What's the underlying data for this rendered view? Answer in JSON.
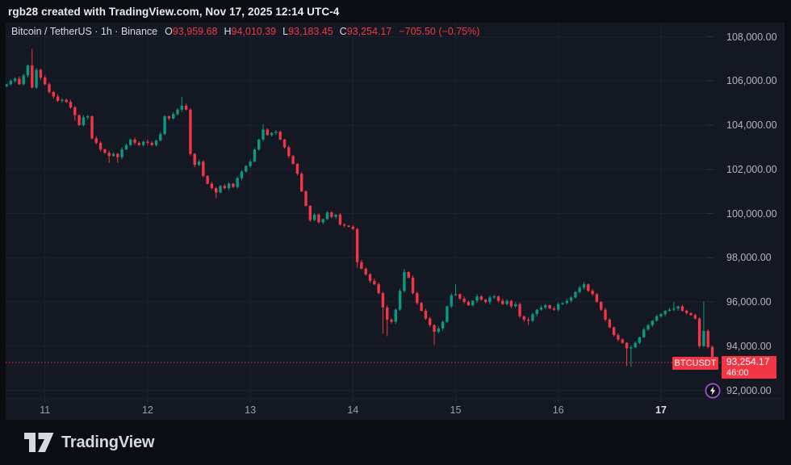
{
  "attribution": {
    "text": "rgb28 created with TradingView.com, Nov 17, 2025 12:14 UTC-4"
  },
  "legend": {
    "title": "Bitcoin / TetherUS · 1h · Binance",
    "o": {
      "label": "O",
      "value": "93,959.68"
    },
    "h": {
      "label": "H",
      "value": "94,010.39"
    },
    "l": {
      "label": "L",
      "value": "93,183.45"
    },
    "c": {
      "label": "C",
      "value": "93,254.17"
    },
    "change": "−705.50 (−0.75%)"
  },
  "price_scale": {
    "labels": [
      {
        "text": "108,000.00",
        "value": 108000
      },
      {
        "text": "106,000.00",
        "value": 106000
      },
      {
        "text": "104,000.00",
        "value": 104000
      },
      {
        "text": "102,000.00",
        "value": 102000
      },
      {
        "text": "100,000.00",
        "value": 100000
      },
      {
        "text": "98,000.00",
        "value": 98000
      },
      {
        "text": "96,000.00",
        "value": 96000
      },
      {
        "text": "94,000.00",
        "value": 94000
      },
      {
        "text": "92,000.00",
        "value": 92000
      }
    ]
  },
  "time_scale": {
    "ticks": [
      {
        "text": "11",
        "hour": 9,
        "strong": false
      },
      {
        "text": "12",
        "hour": 33,
        "strong": false
      },
      {
        "text": "13",
        "hour": 57,
        "strong": false
      },
      {
        "text": "14",
        "hour": 81,
        "strong": false
      },
      {
        "text": "15",
        "hour": 105,
        "strong": false
      },
      {
        "text": "16",
        "hour": 129,
        "strong": false
      },
      {
        "text": "17",
        "hour": 153,
        "strong": true
      }
    ]
  },
  "last_price": {
    "symbol_label": "BTCUSDT",
    "price": "93,254.17",
    "countdown": "46:00",
    "value": 93254.17
  },
  "branding": {
    "logo_text": "TradingView"
  },
  "colors": {
    "up": "#089981",
    "down": "#f23645",
    "grid": "#1c2130",
    "axis_stub": "#2a2e39",
    "frame": "#0b0d12",
    "chart_bg": "#141823",
    "axis_text": "#b2b5be",
    "price_line": "#f23645",
    "accent_purple": "#a14fd6"
  },
  "chart_data": {
    "type": "candlestick",
    "title": "Bitcoin / TetherUS",
    "symbol": "BTCUSDT",
    "exchange": "Binance",
    "interval": "1h",
    "last_bar": {
      "open": 93959.68,
      "high": 94010.39,
      "low": 93183.45,
      "close": 93254.17,
      "change": -705.5,
      "change_pct": -0.75
    },
    "current_price": 93254.17,
    "y_axis": {
      "top_value": 108000,
      "tick_step": 2000,
      "min_label": 92000,
      "max_label": 108000
    },
    "x_axis": {
      "unit": "hour",
      "bars": 166,
      "day_tick_hours": [
        9,
        33,
        57,
        81,
        105,
        129,
        153
      ],
      "day_labels": [
        "11",
        "12",
        "13",
        "14",
        "15",
        "16",
        "17"
      ]
    },
    "first_open": 105750,
    "closes": [
      105850,
      106000,
      106100,
      105850,
      106250,
      106700,
      105700,
      106500,
      106150,
      105850,
      105500,
      105300,
      105100,
      105150,
      105050,
      104800,
      104450,
      104000,
      104350,
      104400,
      103400,
      103200,
      102900,
      102750,
      102600,
      102700,
      102550,
      102900,
      103100,
      103350,
      103200,
      103100,
      103250,
      103200,
      103100,
      103300,
      103600,
      104400,
      104300,
      104500,
      104700,
      104880,
      104700,
      102700,
      102200,
      102350,
      101700,
      101350,
      101150,
      100950,
      101250,
      101150,
      101350,
      101200,
      101600,
      101900,
      102150,
      102350,
      102900,
      103350,
      103800,
      103550,
      103650,
      103700,
      103350,
      103000,
      102600,
      102250,
      101800,
      101000,
      100350,
      99700,
      99950,
      99600,
      99750,
      100050,
      99850,
      99950,
      99500,
      99450,
      99400,
      99300,
      97800,
      97500,
      97250,
      96950,
      96800,
      96400,
      95750,
      95200,
      95100,
      95650,
      96500,
      97350,
      97100,
      96400,
      95950,
      95600,
      95250,
      94950,
      94650,
      94800,
      95100,
      95800,
      96300,
      96350,
      96150,
      96000,
      95850,
      96050,
      96250,
      96100,
      96000,
      96200,
      96250,
      96050,
      95900,
      96050,
      95800,
      95900,
      95350,
      95200,
      95150,
      95450,
      95650,
      95750,
      95850,
      95700,
      95650,
      95900,
      95950,
      96050,
      96200,
      96450,
      96650,
      96800,
      96500,
      96350,
      96000,
      95650,
      95200,
      94850,
      94500,
      94300,
      94150,
      93900,
      93950,
      94150,
      94400,
      94750,
      94950,
      95150,
      95350,
      95450,
      95600,
      95650,
      95700,
      95800,
      95600,
      95500,
      95400,
      95250,
      94000,
      94690,
      93960,
      93254.17
    ],
    "wick_overrides": {
      "6": {
        "high": 107450
      },
      "16": {
        "low": 104200
      },
      "24": {
        "low": 102280
      },
      "26": {
        "low": 102300
      },
      "41": {
        "high": 105280
      },
      "49": {
        "low": 100690
      },
      "60": {
        "high": 104040
      },
      "82": {
        "low": 97550
      },
      "88": {
        "low": 94580
      },
      "89": {
        "low": 94450
      },
      "93": {
        "high": 97500
      },
      "100": {
        "low": 94060
      },
      "105": {
        "high": 96800
      },
      "122": {
        "low": 94950
      },
      "135": {
        "high": 96900
      },
      "145": {
        "low": 93100
      },
      "146": {
        "low": 93060
      },
      "156": {
        "high": 96000
      },
      "163": {
        "high": 96030
      }
    }
  }
}
